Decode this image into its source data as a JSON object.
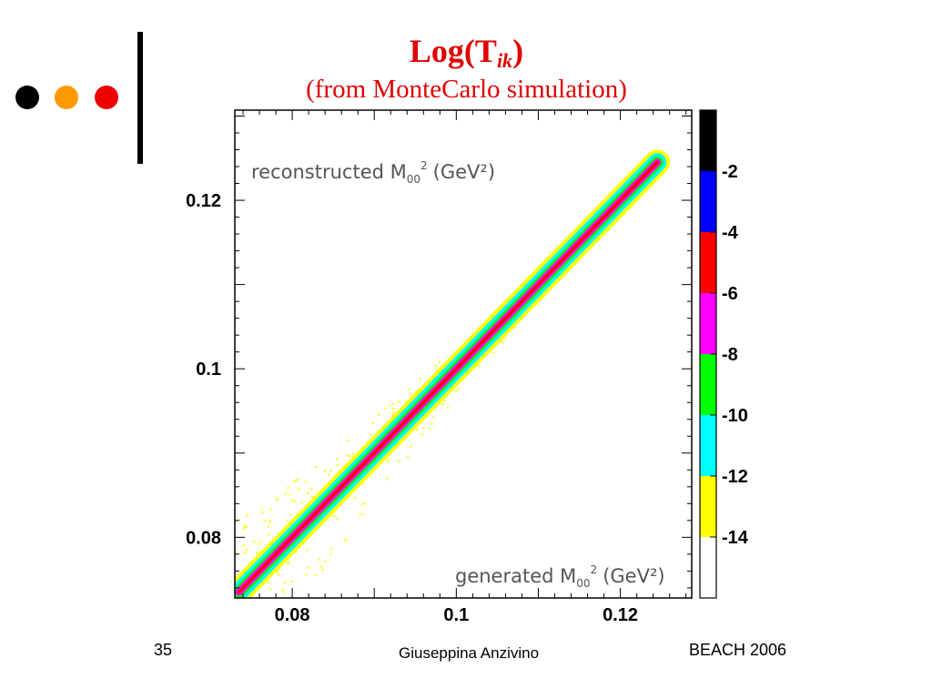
{
  "slide": {
    "title_main": "Log(T",
    "title_sub": "ik",
    "title_close": ")",
    "subtitle": "(from MonteCarlo simulation)",
    "bullet_colors": [
      "#000000",
      "#ff9900",
      "#ee0000"
    ],
    "accent_color": "#e00000",
    "footer": {
      "page_number": "35",
      "author": "Giuseppina Anzivino",
      "event": "BEACH 2006"
    }
  },
  "chart_data": {
    "type": "heatmap",
    "inset_label_y": "reconstructed M",
    "inset_label_x": "generated M",
    "label_subscript": "00",
    "label_superscript": "2",
    "label_unit": "(GeV²)",
    "xlim": [
      0.073,
      0.1287
    ],
    "ylim": [
      0.0728,
      0.1307
    ],
    "x_ticks": [
      {
        "value": 0.08,
        "label": "0.08"
      },
      {
        "value": 0.1,
        "label": "0.1"
      },
      {
        "value": 0.12,
        "label": "0.12"
      }
    ],
    "y_ticks": [
      {
        "value": 0.08,
        "label": "0.08"
      },
      {
        "value": 0.1,
        "label": "0.1"
      },
      {
        "value": 0.12,
        "label": "0.12"
      }
    ],
    "diagonal_range": [
      0.0735,
      0.1245
    ],
    "level_colors": [
      "#ffff00",
      "#00ffff",
      "#00ff00",
      "#ff00ff",
      "#ff0000"
    ],
    "colorbar": {
      "range": [
        -16,
        0
      ],
      "bands": [
        {
          "from": -16,
          "to": -14,
          "color": "#ffffff"
        },
        {
          "from": -14,
          "to": -12,
          "color": "#ffff00"
        },
        {
          "from": -12,
          "to": -10,
          "color": "#00ffff"
        },
        {
          "from": -10,
          "to": -8,
          "color": "#00ff00"
        },
        {
          "from": -8,
          "to": -6,
          "color": "#ff00ff"
        },
        {
          "from": -6,
          "to": -4,
          "color": "#ff0000"
        },
        {
          "from": -4,
          "to": -2,
          "color": "#0000ff"
        },
        {
          "from": -2,
          "to": 0,
          "color": "#000000"
        }
      ],
      "ticks": [
        {
          "value": -2,
          "label": "-2"
        },
        {
          "value": -4,
          "label": "-4"
        },
        {
          "value": -6,
          "label": "-6"
        },
        {
          "value": -8,
          "label": "-8"
        },
        {
          "value": -10,
          "label": "-10"
        },
        {
          "value": -12,
          "label": "-12"
        },
        {
          "value": -14,
          "label": "-14"
        }
      ]
    }
  }
}
